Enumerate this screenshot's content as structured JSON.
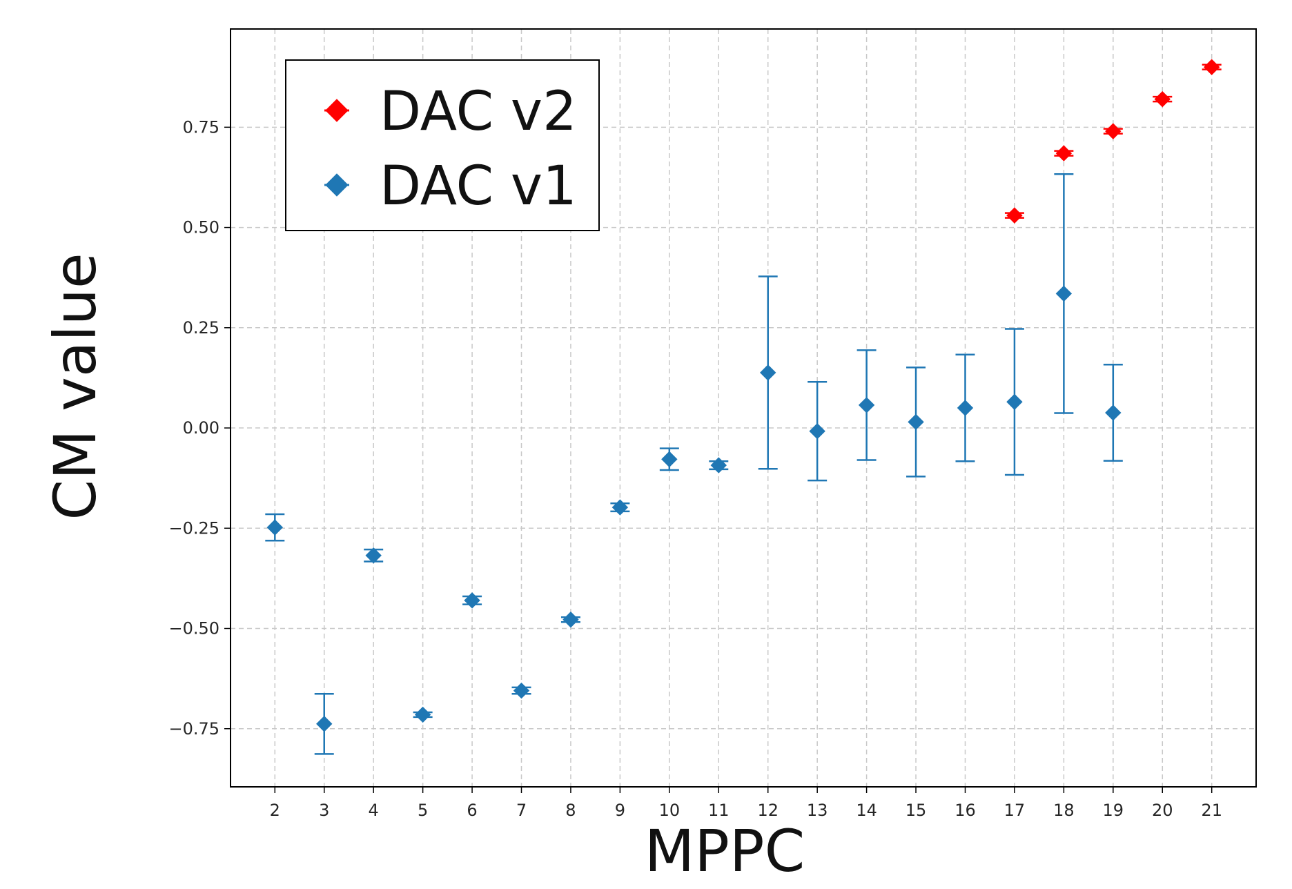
{
  "chart_data": {
    "type": "scatter",
    "title": "",
    "xlabel": "MPPC",
    "ylabel": "CM value",
    "xlim": [
      1.1,
      21.9
    ],
    "ylim": [
      -0.895,
      0.995
    ],
    "xticks": [
      2,
      3,
      4,
      5,
      6,
      7,
      8,
      9,
      10,
      11,
      12,
      13,
      14,
      15,
      16,
      17,
      18,
      19,
      20,
      21
    ],
    "yticks": [
      -0.75,
      -0.5,
      -0.25,
      0.0,
      0.25,
      0.5,
      0.75
    ],
    "ytick_labels": [
      "−0.75",
      "−0.50",
      "−0.25",
      "0.00",
      "0.25",
      "0.50",
      "0.75"
    ],
    "grid": true,
    "legend_position": "top-left",
    "series": [
      {
        "name": "DAC v2",
        "color": "#ff0000",
        "marker": "diamond",
        "points": [
          {
            "x": 17,
            "y": 0.53,
            "err": 0.006
          },
          {
            "x": 18,
            "y": 0.685,
            "err": 0.006
          },
          {
            "x": 19,
            "y": 0.74,
            "err": 0.006
          },
          {
            "x": 20,
            "y": 0.82,
            "err": 0.006
          },
          {
            "x": 21,
            "y": 0.9,
            "err": 0.006
          }
        ]
      },
      {
        "name": "DAC v1",
        "color": "#1f77b4",
        "marker": "diamond",
        "points": [
          {
            "x": 2,
            "y": -0.248,
            "err": 0.033
          },
          {
            "x": 3,
            "y": -0.738,
            "err": 0.075
          },
          {
            "x": 4,
            "y": -0.318,
            "err": 0.015
          },
          {
            "x": 5,
            "y": -0.715,
            "err": 0.006
          },
          {
            "x": 6,
            "y": -0.43,
            "err": 0.01
          },
          {
            "x": 7,
            "y": -0.655,
            "err": 0.008
          },
          {
            "x": 8,
            "y": -0.478,
            "err": 0.006
          },
          {
            "x": 9,
            "y": -0.198,
            "err": 0.01
          },
          {
            "x": 10,
            "y": -0.078,
            "err": 0.027
          },
          {
            "x": 11,
            "y": -0.093,
            "err": 0.01
          },
          {
            "x": 12,
            "y": 0.138,
            "err": 0.24
          },
          {
            "x": 13,
            "y": -0.008,
            "err": 0.123
          },
          {
            "x": 14,
            "y": 0.057,
            "err": 0.137
          },
          {
            "x": 15,
            "y": 0.015,
            "err": 0.136
          },
          {
            "x": 16,
            "y": 0.05,
            "err": 0.133
          },
          {
            "x": 17,
            "y": 0.065,
            "err": 0.182
          },
          {
            "x": 18,
            "y": 0.335,
            "err": 0.298
          },
          {
            "x": 19,
            "y": 0.038,
            "err": 0.12
          }
        ]
      }
    ]
  }
}
